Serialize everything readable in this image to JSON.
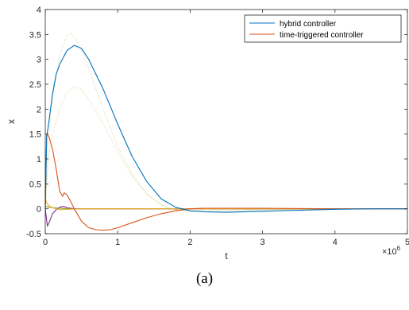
{
  "caption": "(a)",
  "chart_data": {
    "type": "line",
    "xlabel": "t",
    "ylabel": "x",
    "x_exponent_label": "×10",
    "x_exponent_power": "6",
    "xlim": [
      0,
      5
    ],
    "ylim": [
      -0.5,
      4
    ],
    "xticks": [
      "0",
      "1",
      "2",
      "3",
      "4",
      "5"
    ],
    "yticks": [
      "-0.5",
      "0",
      "0.5",
      "1",
      "1.5",
      "2",
      "2.5",
      "3",
      "3.5",
      "4"
    ],
    "legend_position": "top-right",
    "series": [
      {
        "name": "hybrid controller",
        "color": "#0072BD",
        "style": "solid",
        "x": [
          0,
          0.02,
          0.05,
          0.1,
          0.15,
          0.2,
          0.3,
          0.4,
          0.5,
          0.6,
          0.8,
          1.0,
          1.2,
          1.4,
          1.6,
          1.8,
          2.0,
          2.2,
          2.5,
          3.0,
          3.5,
          4.0,
          4.5,
          5.0
        ],
        "y": [
          0,
          1.45,
          1.75,
          2.3,
          2.7,
          2.9,
          3.18,
          3.28,
          3.22,
          3.0,
          2.4,
          1.7,
          1.05,
          0.55,
          0.2,
          0.03,
          -0.04,
          -0.06,
          -0.07,
          -0.05,
          -0.03,
          -0.01,
          0,
          0
        ]
      },
      {
        "name": "time-triggered controller",
        "color": "#D95319",
        "style": "solid",
        "x": [
          0,
          0.02,
          0.05,
          0.1,
          0.15,
          0.2,
          0.24,
          0.26,
          0.3,
          0.35,
          0.4,
          0.5,
          0.6,
          0.7,
          0.8,
          0.9,
          1.0,
          1.2,
          1.4,
          1.6,
          1.8,
          2.0,
          2.2,
          2.5,
          3.0,
          4.0,
          5.0
        ],
        "y": [
          0,
          1.5,
          1.45,
          1.2,
          0.8,
          0.35,
          0.25,
          0.32,
          0.28,
          0.15,
          0.0,
          -0.25,
          -0.38,
          -0.42,
          -0.43,
          -0.42,
          -0.38,
          -0.28,
          -0.18,
          -0.1,
          -0.04,
          0.0,
          0.01,
          0.01,
          0.01,
          0,
          0
        ]
      },
      {
        "name": "",
        "color": "#EDB120",
        "style": "solid",
        "x": [
          0,
          0.02,
          0.05,
          0.1,
          0.15,
          0.2,
          0.3,
          0.5,
          1.0,
          5.0
        ],
        "y": [
          0.2,
          0.12,
          0.05,
          0.02,
          0.0,
          -0.02,
          -0.01,
          0.0,
          0.0,
          0
        ]
      },
      {
        "name": "",
        "color": "#7E2F8E",
        "style": "solid",
        "x": [
          0,
          0.03,
          0.06,
          0.1,
          0.15,
          0.2,
          0.25,
          0.3,
          0.4,
          0.6,
          1.0,
          5.0
        ],
        "y": [
          0,
          -0.35,
          -0.25,
          -0.1,
          -0.02,
          0.03,
          0.05,
          0.02,
          0.0,
          0.0,
          0,
          0
        ]
      },
      {
        "name": "",
        "color": "#77AC30",
        "style": "solid",
        "x": [
          0,
          0.05,
          0.1,
          0.2,
          0.3,
          0.5,
          1.0,
          5.0
        ],
        "y": [
          0.05,
          0.03,
          0.02,
          0.01,
          0.0,
          0.0,
          0,
          0
        ]
      },
      {
        "name": "",
        "color": "#C9D88E",
        "style": "dotted",
        "x": [
          0,
          0.05,
          0.1,
          0.2,
          0.3,
          0.35,
          0.4,
          0.5,
          0.6,
          0.8,
          1.0,
          1.2,
          1.4,
          1.6,
          1.8,
          2.0,
          2.2,
          2.5,
          3.0,
          4.0,
          5.0
        ],
        "y": [
          0,
          1.5,
          2.2,
          3.1,
          3.48,
          3.52,
          3.45,
          3.2,
          2.8,
          2.0,
          1.25,
          0.7,
          0.3,
          0.08,
          -0.02,
          -0.06,
          -0.06,
          -0.05,
          -0.03,
          0,
          0
        ]
      },
      {
        "name": "",
        "color": "#E7C68A",
        "style": "dotted",
        "x": [
          0,
          0.05,
          0.1,
          0.2,
          0.3,
          0.4,
          0.5,
          0.6,
          0.8,
          1.0,
          1.2,
          1.4,
          1.6,
          1.8,
          2.0,
          2.5,
          3.0,
          5.0
        ],
        "y": [
          0,
          1.1,
          1.5,
          2.0,
          2.35,
          2.45,
          2.4,
          2.2,
          1.7,
          1.15,
          0.65,
          0.3,
          0.08,
          -0.02,
          -0.04,
          -0.03,
          -0.01,
          0
        ]
      },
      {
        "name": "",
        "color": "#D4C48C",
        "style": "dotted",
        "x": [
          0,
          0.05,
          0.1,
          0.2,
          0.3,
          0.5,
          1.0,
          2.0,
          5.0
        ],
        "y": [
          0.1,
          0.08,
          0.05,
          0.02,
          0.01,
          0.0,
          0.0,
          0,
          0
        ]
      }
    ]
  }
}
